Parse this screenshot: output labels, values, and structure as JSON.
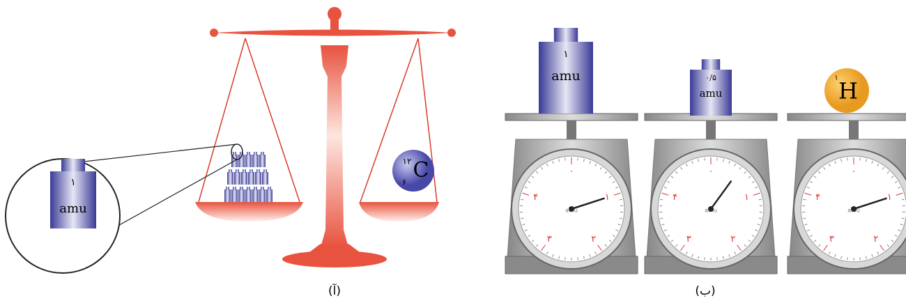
{
  "balance": {
    "zoom_weight": {
      "value": "۱",
      "unit": "amu"
    },
    "carbon": {
      "mass_number": "۱۲",
      "symbol": "C",
      "atomic_number": "۶"
    },
    "caption": "(آ)"
  },
  "scales": {
    "weights": [
      {
        "value": "۱",
        "unit": "amu"
      },
      {
        "value": "۰/۵",
        "unit": "amu"
      }
    ],
    "hydrogen": {
      "symbol": "H",
      "mass_number": "۱"
    },
    "dial_labels": [
      "۰",
      "۱",
      "۲",
      "۳",
      "۴"
    ],
    "dial_unit": "amu",
    "caption": "(ب)"
  }
}
